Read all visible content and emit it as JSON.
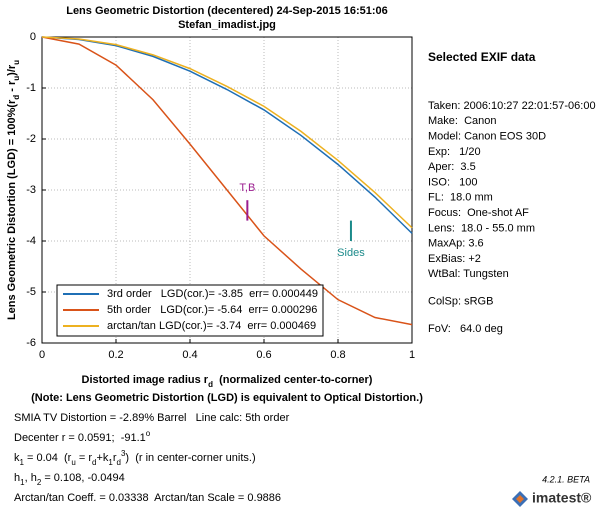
{
  "chart_data": {
    "type": "line",
    "title": "Lens Geometric Distortion  (decentered)  24-Sep-2015 16:51:06",
    "subtitle": "Stefan_imadist.jpg",
    "ylabel": [
      "Lens Geometric Distortion (LGD) = 100%(r",
      {
        "sub": "d"
      },
      " - r",
      {
        "sub": "u"
      },
      ")/r",
      {
        "sub": "u"
      }
    ],
    "xlabel": [
      "Distorted image radius r",
      {
        "sub": "d"
      },
      "  (normalized center-to-corner)"
    ],
    "x": [
      0,
      0.1,
      0.2,
      0.3,
      0.4,
      0.5,
      0.6,
      0.7,
      0.8,
      0.9,
      1
    ],
    "series": [
      {
        "name": "3rd order   LGD(cor.)= -3.85  err= 0.000449",
        "color": "#1f6fb5",
        "values": [
          0,
          -0.05,
          -0.17,
          -0.38,
          -0.67,
          -1.03,
          -1.43,
          -1.93,
          -2.5,
          -3.14,
          -3.85
        ]
      },
      {
        "name": "5th order   LGD(cor.)= -5.64  err= 0.000296",
        "color": "#d95319",
        "values": [
          0,
          -0.14,
          -0.55,
          -1.23,
          -2.1,
          -3.0,
          -3.9,
          -4.55,
          -5.15,
          -5.5,
          -5.64
        ]
      },
      {
        "name": "arctan/tan LGD(cor.)= -3.74  err= 0.000469",
        "color": "#edb120",
        "values": [
          0,
          -0.04,
          -0.15,
          -0.35,
          -0.62,
          -0.97,
          -1.36,
          -1.85,
          -2.42,
          -3.05,
          -3.74
        ]
      }
    ],
    "xlim": [
      0,
      1
    ],
    "xticks": [
      0,
      0.2,
      0.4,
      0.6,
      0.8,
      1
    ],
    "ylim": [
      -6,
      0
    ],
    "yticks": [
      0,
      -1,
      -2,
      -3,
      -4,
      -5,
      -6
    ],
    "grid": true,
    "legend": "lower left",
    "annotations": [
      {
        "text": "T,B",
        "color": "#9b1d8f",
        "x": 0.555,
        "ymin": -3.6,
        "ymax": -3.2,
        "label_position": "above"
      },
      {
        "text": "Sides",
        "color": "#1b8a8a",
        "x": 0.835,
        "ymin": -4.0,
        "ymax": -3.6,
        "label_position": "below"
      }
    ]
  },
  "note": "(Note: Lens Geometric Distortion (LGD) is equivalent to Optical Distortion.)",
  "results": [
    [
      "SMIA TV Distortion = -2.89% Barrel   Line calc: 5th order"
    ],
    [
      "Decenter r = 0.0591;  -91.1",
      {
        "sup": "o"
      }
    ],
    [
      "k",
      {
        "sub": "1"
      },
      " = 0.04  (r",
      {
        "sub": "u"
      },
      " = r",
      {
        "sub": "d"
      },
      "+k",
      {
        "sub": "1"
      },
      "r",
      {
        "sub": "d"
      },
      {
        "sup": "3"
      },
      ")  (r in center-corner units.)"
    ],
    [
      "h",
      {
        "sub": "1"
      },
      ", h",
      {
        "sub": "2"
      },
      " = 0.108, -0.0494"
    ],
    [
      "Arctan/tan Coeff. = 0.03338  Arctan/tan Scale = 0.9886"
    ]
  ],
  "exif": {
    "title": "Selected EXIF data",
    "groups": [
      [
        "Taken: 2006:10:27 22:01:57-06:00",
        "Make:  Canon",
        "Model: Canon EOS 30D",
        "Exp:   1/20",
        "Aper:  3.5",
        "ISO:   100",
        "FL:  18.0 mm",
        "Focus:  One-shot AF",
        "Lens:  18.0 - 55.0 mm",
        "MaxAp: 3.6",
        "ExBias: +2",
        "WtBal: Tungsten"
      ],
      [
        "ColSp: sRGB"
      ],
      [
        "FoV:   64.0 deg"
      ]
    ]
  },
  "version": "4.2.1. BETA",
  "brand": "imatest®"
}
